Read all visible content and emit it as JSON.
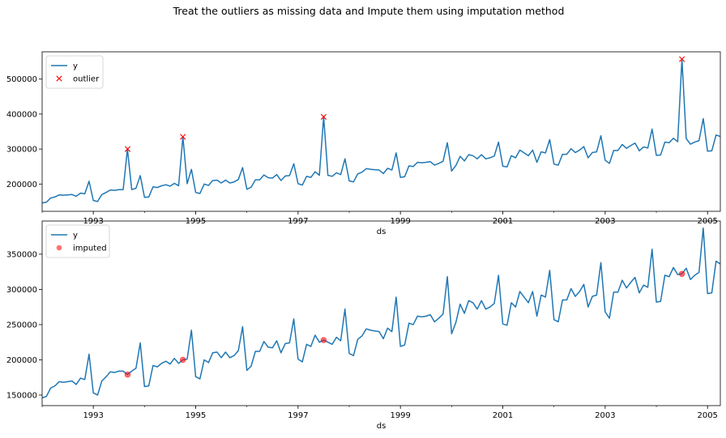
{
  "figure": {
    "suptitle": "Treat the outliers as missing data and Impute them using imputation method"
  },
  "chart_data": [
    {
      "type": "line",
      "xlabel": "ds",
      "ylabel": "",
      "xlim": [
        1992.0,
        2005.25
      ],
      "ylim": [
        122000,
        578000
      ],
      "yticks": [
        200000,
        300000,
        400000,
        500000
      ],
      "ytick_labels": [
        "200000",
        "300000",
        "400000",
        "500000"
      ],
      "xticks": [
        1993,
        1995,
        1997,
        1999,
        2001,
        2003,
        2005
      ],
      "xtick_labels": [
        "1993",
        "1995",
        "1997",
        "1999",
        "2001",
        "2003",
        "2005"
      ],
      "grid": false,
      "legend_position": "upper-left",
      "series": [
        {
          "name": "y",
          "color": "#1f77b4",
          "x_start": 1992.0,
          "x_step_months": 1,
          "values": [
            146000,
            148000,
            160000,
            163000,
            169000,
            168000,
            169000,
            170000,
            165000,
            174000,
            172000,
            208000,
            153000,
            150000,
            170000,
            176000,
            183000,
            182000,
            184000,
            184000,
            300000,
            184000,
            188000,
            224000,
            162000,
            163000,
            192000,
            190000,
            195000,
            198000,
            194000,
            202000,
            195000,
            335000,
            201000,
            242000,
            176000,
            173000,
            200000,
            196000,
            210000,
            211000,
            203000,
            211000,
            203000,
            206000,
            213000,
            247000,
            185000,
            191000,
            212000,
            212000,
            226000,
            218000,
            217000,
            227000,
            210000,
            223000,
            224000,
            258000,
            201000,
            197000,
            222000,
            219000,
            235000,
            225000,
            392000,
            225000,
            222000,
            232000,
            227000,
            272000,
            209000,
            206000,
            229000,
            234000,
            244000,
            242000,
            241000,
            240000,
            230000,
            245000,
            240000,
            289000,
            219000,
            221000,
            252000,
            250000,
            262000,
            261000,
            262000,
            264000,
            254000,
            259000,
            265000,
            318000,
            237000,
            253000,
            279000,
            266000,
            284000,
            281000,
            272000,
            284000,
            272000,
            275000,
            280000,
            320000,
            251000,
            249000,
            281000,
            275000,
            297000,
            289000,
            281000,
            297000,
            262000,
            292000,
            289000,
            327000,
            257000,
            254000,
            285000,
            285000,
            301000,
            290000,
            297000,
            307000,
            275000,
            290000,
            292000,
            338000,
            268000,
            259000,
            296000,
            296000,
            313000,
            302000,
            310000,
            317000,
            295000,
            306000,
            303000,
            357000,
            282000,
            283000,
            320000,
            318000,
            331000,
            321000,
            557000,
            330000,
            314000,
            320000,
            324000,
            387000,
            294000,
            295000,
            340000,
            336000
          ]
        },
        {
          "name": "outlier",
          "color": "#ff0000",
          "marker": "x",
          "points": [
            {
              "x": 1993.67,
              "y": 300000
            },
            {
              "x": 1994.75,
              "y": 335000
            },
            {
              "x": 1997.5,
              "y": 392000
            },
            {
              "x": 2004.5,
              "y": 557000
            }
          ]
        }
      ]
    },
    {
      "type": "line",
      "xlabel": "ds",
      "ylabel": "",
      "xlim": [
        1992.0,
        2005.25
      ],
      "ylim": [
        135000,
        397000
      ],
      "yticks": [
        150000,
        200000,
        250000,
        300000,
        350000
      ],
      "ytick_labels": [
        "150000",
        "200000",
        "250000",
        "300000",
        "350000"
      ],
      "xticks": [
        1993,
        1995,
        1997,
        1999,
        2001,
        2003,
        2005
      ],
      "xtick_labels": [
        "1993",
        "1995",
        "1997",
        "1999",
        "2001",
        "2003",
        "2005"
      ],
      "grid": false,
      "legend_position": "upper-left",
      "series": [
        {
          "name": "y",
          "color": "#1f77b4",
          "x_start": 1992.0,
          "x_step_months": 1,
          "values": [
            146000,
            148000,
            160000,
            163000,
            169000,
            168000,
            169000,
            170000,
            165000,
            174000,
            172000,
            208000,
            153000,
            150000,
            170000,
            176000,
            183000,
            182000,
            184000,
            184000,
            179000,
            184000,
            188000,
            224000,
            162000,
            163000,
            192000,
            190000,
            195000,
            198000,
            194000,
            202000,
            195000,
            200000,
            201000,
            242000,
            176000,
            173000,
            200000,
            196000,
            210000,
            211000,
            203000,
            211000,
            203000,
            206000,
            213000,
            247000,
            185000,
            191000,
            212000,
            212000,
            226000,
            218000,
            217000,
            227000,
            210000,
            223000,
            224000,
            258000,
            201000,
            197000,
            222000,
            219000,
            235000,
            225000,
            228000,
            225000,
            222000,
            232000,
            227000,
            272000,
            209000,
            206000,
            229000,
            234000,
            244000,
            242000,
            241000,
            240000,
            230000,
            245000,
            240000,
            289000,
            219000,
            221000,
            252000,
            250000,
            262000,
            261000,
            262000,
            264000,
            254000,
            259000,
            265000,
            318000,
            237000,
            253000,
            279000,
            266000,
            284000,
            281000,
            272000,
            284000,
            272000,
            275000,
            280000,
            320000,
            251000,
            249000,
            281000,
            275000,
            297000,
            289000,
            281000,
            297000,
            262000,
            292000,
            289000,
            327000,
            257000,
            254000,
            285000,
            285000,
            301000,
            290000,
            297000,
            307000,
            275000,
            290000,
            292000,
            338000,
            268000,
            259000,
            296000,
            296000,
            313000,
            302000,
            310000,
            317000,
            295000,
            306000,
            303000,
            357000,
            282000,
            283000,
            320000,
            318000,
            331000,
            321000,
            322000,
            330000,
            314000,
            320000,
            324000,
            387000,
            294000,
            295000,
            340000,
            336000
          ]
        },
        {
          "name": "imputed",
          "color": "#ff0000",
          "marker": "o",
          "points": [
            {
              "x": 1993.67,
              "y": 179000
            },
            {
              "x": 1994.75,
              "y": 200000
            },
            {
              "x": 1997.5,
              "y": 228000
            },
            {
              "x": 2004.5,
              "y": 322000
            }
          ]
        }
      ]
    }
  ]
}
